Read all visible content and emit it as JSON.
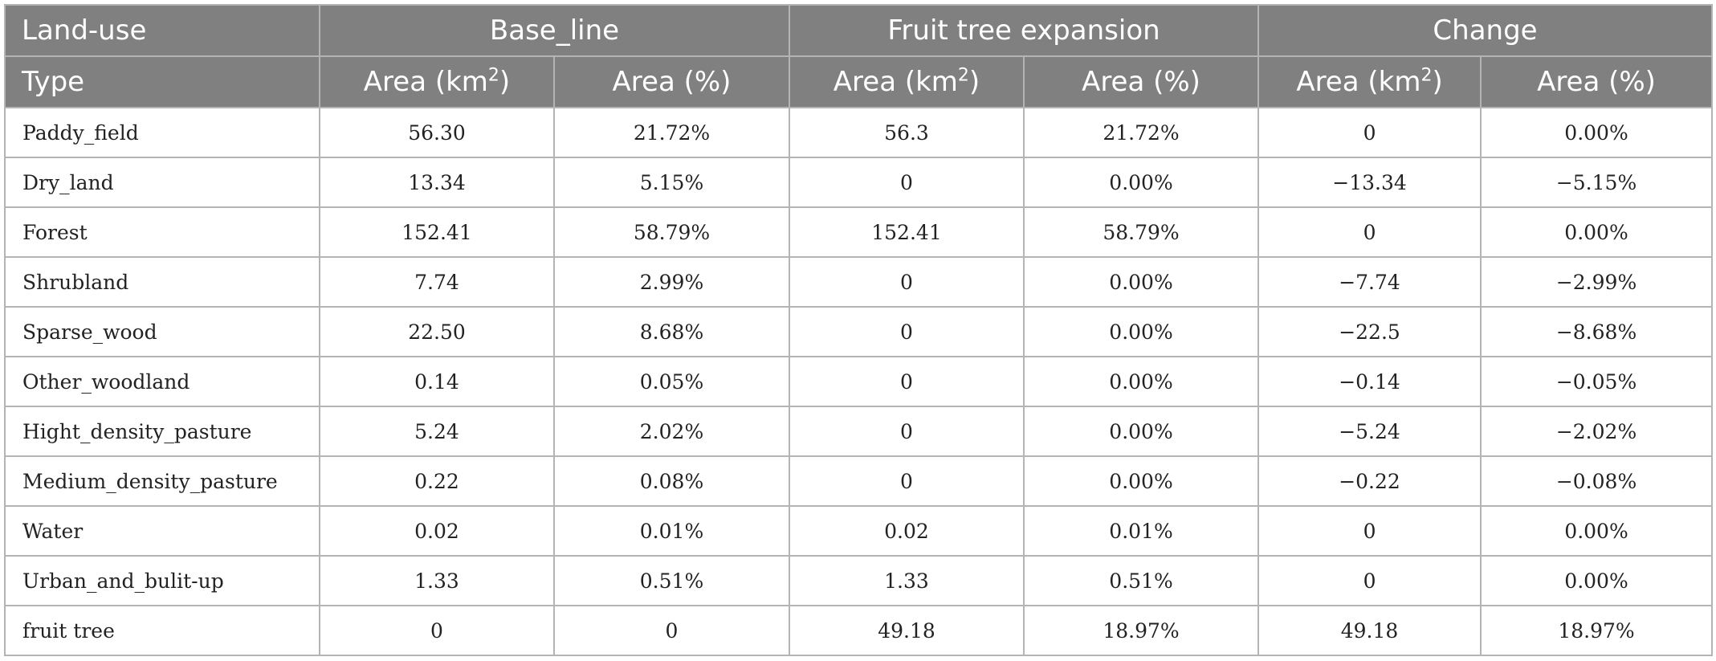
{
  "table": {
    "group_headers": [
      {
        "label": "Land-use"
      },
      {
        "label": "Base_line"
      },
      {
        "label": "Fruit tree expansion"
      },
      {
        "label": "Change"
      }
    ],
    "sub_headers": {
      "type_label": "Type",
      "area_km_prefix": "Area (km",
      "area_km_sup": "2",
      "area_km_suffix": ")",
      "area_pct": "Area (%)"
    },
    "rows": [
      {
        "type": "Paddy_field",
        "base_km2": "56.30",
        "base_pct": "21.72%",
        "fruit_km2": "56.3",
        "fruit_pct": "21.72%",
        "chg_km2": "0",
        "chg_pct": "0.00%"
      },
      {
        "type": "Dry_land",
        "base_km2": "13.34",
        "base_pct": "5.15%",
        "fruit_km2": "0",
        "fruit_pct": "0.00%",
        "chg_km2": "−13.34",
        "chg_pct": "−5.15%"
      },
      {
        "type": "Forest",
        "base_km2": "152.41",
        "base_pct": "58.79%",
        "fruit_km2": "152.41",
        "fruit_pct": "58.79%",
        "chg_km2": "0",
        "chg_pct": "0.00%"
      },
      {
        "type": "Shrubland",
        "base_km2": "7.74",
        "base_pct": "2.99%",
        "fruit_km2": "0",
        "fruit_pct": "0.00%",
        "chg_km2": "−7.74",
        "chg_pct": "−2.99%"
      },
      {
        "type": "Sparse_wood",
        "base_km2": "22.50",
        "base_pct": "8.68%",
        "fruit_km2": "0",
        "fruit_pct": "0.00%",
        "chg_km2": "−22.5",
        "chg_pct": "−8.68%"
      },
      {
        "type": "Other_woodland",
        "base_km2": "0.14",
        "base_pct": "0.05%",
        "fruit_km2": "0",
        "fruit_pct": "0.00%",
        "chg_km2": "−0.14",
        "chg_pct": "−0.05%"
      },
      {
        "type": "Hight_density_pasture",
        "base_km2": "5.24",
        "base_pct": "2.02%",
        "fruit_km2": "0",
        "fruit_pct": "0.00%",
        "chg_km2": "−5.24",
        "chg_pct": "−2.02%"
      },
      {
        "type": "Medium_density_pasture",
        "base_km2": "0.22",
        "base_pct": "0.08%",
        "fruit_km2": "0",
        "fruit_pct": "0.00%",
        "chg_km2": "−0.22",
        "chg_pct": "−0.08%"
      },
      {
        "type": "Water",
        "base_km2": "0.02",
        "base_pct": "0.01%",
        "fruit_km2": "0.02",
        "fruit_pct": "0.01%",
        "chg_km2": "0",
        "chg_pct": "0.00%"
      },
      {
        "type": "Urban_and_bulit-up",
        "base_km2": "1.33",
        "base_pct": "0.51%",
        "fruit_km2": "1.33",
        "fruit_pct": "0.51%",
        "chg_km2": "0",
        "chg_pct": "0.00%"
      },
      {
        "type": "fruit tree",
        "base_km2": "0",
        "base_pct": "0",
        "fruit_km2": "49.18",
        "fruit_pct": "18.97%",
        "chg_km2": "49.18",
        "chg_pct": "18.97%"
      }
    ]
  }
}
